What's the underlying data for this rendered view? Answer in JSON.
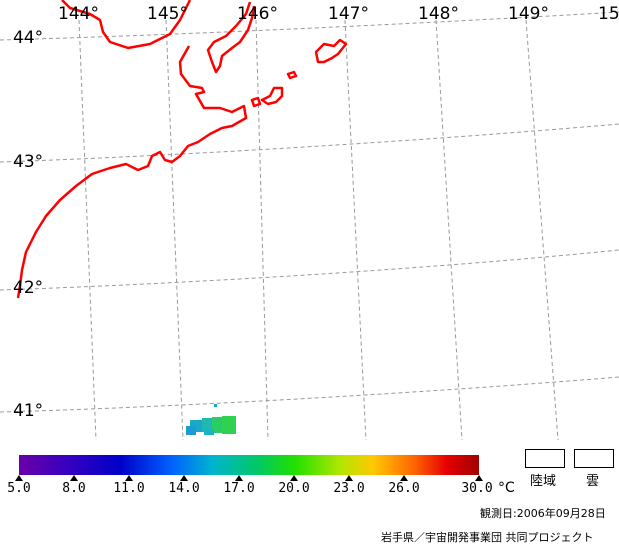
{
  "map": {
    "longitude_labels": [
      "144°",
      "145°",
      "146°",
      "147°",
      "148°",
      "149°",
      "15"
    ],
    "latitude_labels": [
      "44°",
      "43°",
      "42°",
      "41°"
    ]
  },
  "colorbar": {
    "tick_labels": [
      "5.0",
      "8.0",
      "11.0",
      "14.0",
      "17.0",
      "20.0",
      "23.0",
      "26.0",
      "30.0"
    ],
    "unit": "°C"
  },
  "legend": {
    "land_label": "陸域",
    "cloud_label": "雲"
  },
  "observation_date": "観測日:2006年09月28日",
  "credit": "岩手県／宇宙開発事業団 共同プロジェクト",
  "colors": {
    "coastline": "#ff0000",
    "grid": "#999999"
  }
}
